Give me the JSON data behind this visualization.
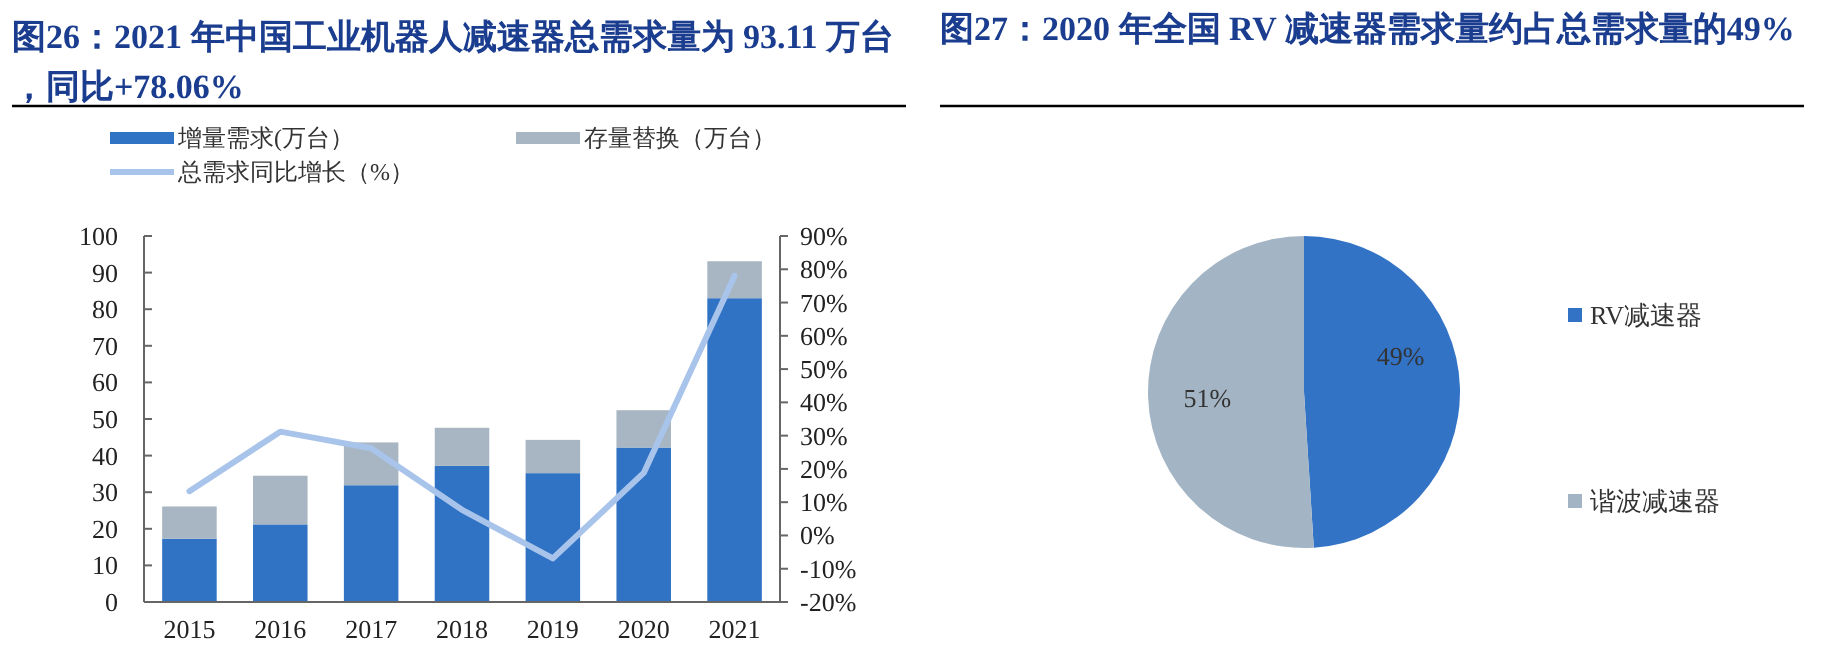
{
  "chart_data": [
    {
      "type": "bar",
      "stacked": true,
      "title": "图26：2021 年中国工业机器人减速器总需求量为 93.11 万台，同比+78.06%",
      "categories": [
        "2015",
        "2016",
        "2017",
        "2018",
        "2019",
        "2020",
        "2021"
      ],
      "series": [
        {
          "name": "增量需求(万台）",
          "color": "#3072c4",
          "values": [
            17.3,
            21.2,
            31.9,
            37.2,
            35.2,
            42.2,
            83
          ]
        },
        {
          "name": "存量替换（万台）",
          "color": "#a7b6c2",
          "values": [
            8.8,
            13.3,
            11.7,
            10.4,
            9.1,
            10.2,
            10.1
          ]
        },
        {
          "name": "总需求同比增长（%）",
          "type": "line",
          "axis": "y2",
          "color": "#a9c4ea",
          "values": [
            13.3,
            31.2,
            26.2,
            7.7,
            -6.9,
            18.8,
            78.06
          ]
        }
      ],
      "ylim": [
        0,
        100
      ],
      "yticks": [
        0,
        10,
        20,
        30,
        40,
        50,
        60,
        70,
        80,
        90,
        100
      ],
      "y2lim": [
        -20,
        90
      ],
      "y2ticks": [
        {
          "value": -20,
          "label": "-20%"
        },
        {
          "value": -10,
          "label": "-10%"
        },
        {
          "value": 0,
          "label": "0%"
        },
        {
          "value": 10,
          "label": "10%"
        },
        {
          "value": 20,
          "label": "20%"
        },
        {
          "value": 30,
          "label": "30%"
        },
        {
          "value": 40,
          "label": "40%"
        },
        {
          "value": 50,
          "label": "50%"
        },
        {
          "value": 60,
          "label": "60%"
        },
        {
          "value": 70,
          "label": "70%"
        },
        {
          "value": 80,
          "label": "80%"
        },
        {
          "value": 90,
          "label": "90%"
        }
      ],
      "legend": "top",
      "grid": false
    },
    {
      "type": "pie",
      "title": "图27：2020 年全国 RV 减速器需求量约占总需求量的49%",
      "categories": [
        "RV减速器",
        "谐波减速器"
      ],
      "values": [
        49,
        51
      ],
      "colors": [
        "#3273c6",
        "#a3b5c4"
      ],
      "value_labels": [
        "49%",
        "51%"
      ],
      "legend": "right"
    }
  ]
}
